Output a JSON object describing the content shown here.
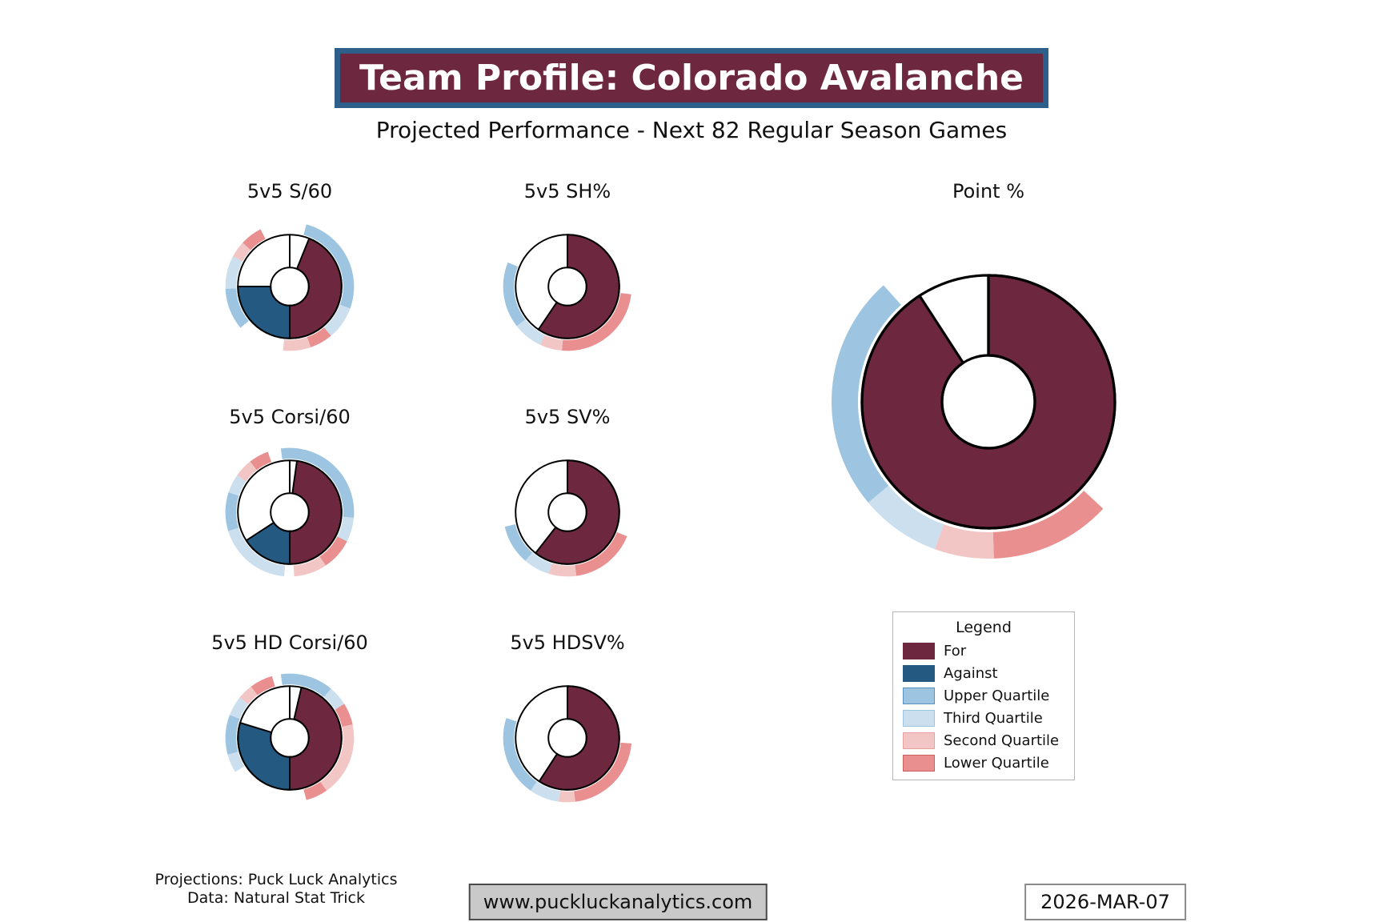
{
  "header": {
    "title": "Team Profile: Colorado Avalanche",
    "subtitle": "Projected Performance - Next 82 Regular Season Games"
  },
  "colors": {
    "for": "#6d2840",
    "against": "#245a82",
    "upper_quartile": "#9dc5e1",
    "third_quartile": "#cbdfee",
    "second_quartile": "#f3c6c6",
    "lower_quartile": "#e98f8f",
    "title_bg": "#6d2840",
    "title_border": "#2e5f8a",
    "outline": "#000000"
  },
  "legend": {
    "title": "Legend",
    "items": [
      {
        "label": "For",
        "fill": "#6d2840",
        "border": "#6d2840"
      },
      {
        "label": "Against",
        "fill": "#245a82",
        "border": "#245a82"
      },
      {
        "label": "Upper Quartile",
        "fill": "#9dc5e1",
        "border": "#5a92bf"
      },
      {
        "label": "Third Quartile",
        "fill": "#cbdfee",
        "border": "#9dc5e1"
      },
      {
        "label": "Second Quartile",
        "fill": "#f3c6c6",
        "border": "#e8a0a0"
      },
      {
        "label": "Lower Quartile",
        "fill": "#e98f8f",
        "border": "#c96060"
      }
    ]
  },
  "chart_data": [
    {
      "type": "donut-gauge",
      "title": "5v5 S/60",
      "size": "small",
      "angle_units": "degrees clockwise from 12 o'clock",
      "wedges": [
        {
          "name": "for",
          "start": 22,
          "end": 180
        },
        {
          "name": "against",
          "start": 180,
          "end": 270
        }
      ],
      "quartile_arcs": [
        {
          "name": "upper_quartile",
          "start": 15,
          "end": 110
        },
        {
          "name": "third_quartile",
          "start": 110,
          "end": 140
        },
        {
          "name": "lower_quartile",
          "start": 140,
          "end": 161
        },
        {
          "name": "second_quartile",
          "start": 161,
          "end": 186
        },
        {
          "name": "upper_quartile",
          "start": 230,
          "end": 268
        },
        {
          "name": "third_quartile",
          "start": 268,
          "end": 298
        },
        {
          "name": "second_quartile",
          "start": 298,
          "end": 313
        },
        {
          "name": "lower_quartile",
          "start": 313,
          "end": 333
        }
      ]
    },
    {
      "type": "donut-gauge",
      "title": "5v5 SH%",
      "size": "small",
      "angle_units": "degrees clockwise from 12 o'clock",
      "wedges": [
        {
          "name": "for",
          "start": 0,
          "end": 214
        }
      ],
      "quartile_arcs": [
        {
          "name": "lower_quartile",
          "start": 97,
          "end": 185
        },
        {
          "name": "second_quartile",
          "start": 185,
          "end": 205
        },
        {
          "name": "third_quartile",
          "start": 205,
          "end": 232
        },
        {
          "name": "upper_quartile",
          "start": 232,
          "end": 292
        }
      ]
    },
    {
      "type": "donut-gauge",
      "title": "5v5 Corsi/60",
      "size": "small",
      "angle_units": "degrees clockwise from 12 o'clock",
      "wedges": [
        {
          "name": "for",
          "start": 8,
          "end": 180
        },
        {
          "name": "against",
          "start": 180,
          "end": 237
        }
      ],
      "quartile_arcs": [
        {
          "name": "upper_quartile",
          "start": -8,
          "end": 95
        },
        {
          "name": "third_quartile",
          "start": 95,
          "end": 117
        },
        {
          "name": "lower_quartile",
          "start": 117,
          "end": 146
        },
        {
          "name": "second_quartile",
          "start": 146,
          "end": 176
        },
        {
          "name": "third_quartile",
          "start": 185,
          "end": 253
        },
        {
          "name": "upper_quartile",
          "start": 253,
          "end": 288
        },
        {
          "name": "third_quartile",
          "start": 288,
          "end": 305
        },
        {
          "name": "second_quartile",
          "start": 305,
          "end": 322
        },
        {
          "name": "lower_quartile",
          "start": 322,
          "end": 340
        }
      ]
    },
    {
      "type": "donut-gauge",
      "title": "5v5 SV%",
      "size": "small",
      "angle_units": "degrees clockwise from 12 o'clock",
      "wedges": [
        {
          "name": "for",
          "start": 0,
          "end": 218
        }
      ],
      "quartile_arcs": [
        {
          "name": "lower_quartile",
          "start": 112,
          "end": 172
        },
        {
          "name": "second_quartile",
          "start": 172,
          "end": 197
        },
        {
          "name": "third_quartile",
          "start": 197,
          "end": 221
        },
        {
          "name": "upper_quartile",
          "start": 221,
          "end": 257
        }
      ]
    },
    {
      "type": "donut-gauge",
      "title": "5v5 HD Corsi/60",
      "size": "small",
      "angle_units": "degrees clockwise from 12 o'clock",
      "wedges": [
        {
          "name": "for",
          "start": 13,
          "end": 180
        },
        {
          "name": "against",
          "start": 180,
          "end": 287
        }
      ],
      "quartile_arcs": [
        {
          "name": "upper_quartile",
          "start": -8,
          "end": 40
        },
        {
          "name": "third_quartile",
          "start": 40,
          "end": 58
        },
        {
          "name": "lower_quartile",
          "start": 58,
          "end": 78
        },
        {
          "name": "second_quartile",
          "start": 78,
          "end": 145
        },
        {
          "name": "lower_quartile",
          "start": 145,
          "end": 165
        },
        {
          "name": "third_quartile",
          "start": 238,
          "end": 255
        },
        {
          "name": "upper_quartile",
          "start": 255,
          "end": 291
        },
        {
          "name": "third_quartile",
          "start": 291,
          "end": 309
        },
        {
          "name": "second_quartile",
          "start": 309,
          "end": 323
        },
        {
          "name": "lower_quartile",
          "start": 323,
          "end": 344
        }
      ]
    },
    {
      "type": "donut-gauge",
      "title": "5v5 HDSV%",
      "size": "small",
      "angle_units": "degrees clockwise from 12 o'clock",
      "wedges": [
        {
          "name": "for",
          "start": 0,
          "end": 213
        }
      ],
      "quartile_arcs": [
        {
          "name": "lower_quartile",
          "start": 95,
          "end": 173
        },
        {
          "name": "second_quartile",
          "start": 173,
          "end": 188
        },
        {
          "name": "third_quartile",
          "start": 188,
          "end": 215
        },
        {
          "name": "upper_quartile",
          "start": 215,
          "end": 288
        }
      ]
    },
    {
      "type": "donut-gauge",
      "title": "Point %",
      "size": "large",
      "angle_units": "degrees clockwise from 12 o'clock",
      "wedges": [
        {
          "name": "for",
          "start": 0,
          "end": 327
        }
      ],
      "quartile_arcs": [
        {
          "name": "lower_quartile",
          "start": 133,
          "end": 178
        },
        {
          "name": "second_quartile",
          "start": 178,
          "end": 200
        },
        {
          "name": "third_quartile",
          "start": 200,
          "end": 230
        },
        {
          "name": "upper_quartile",
          "start": 230,
          "end": 318
        }
      ]
    }
  ],
  "footer": {
    "projections_line": "Projections: Puck Luck Analytics",
    "data_line": "Data: Natural Stat Trick",
    "url": "www.puckluckanalytics.com",
    "date": "2026-MAR-07"
  }
}
